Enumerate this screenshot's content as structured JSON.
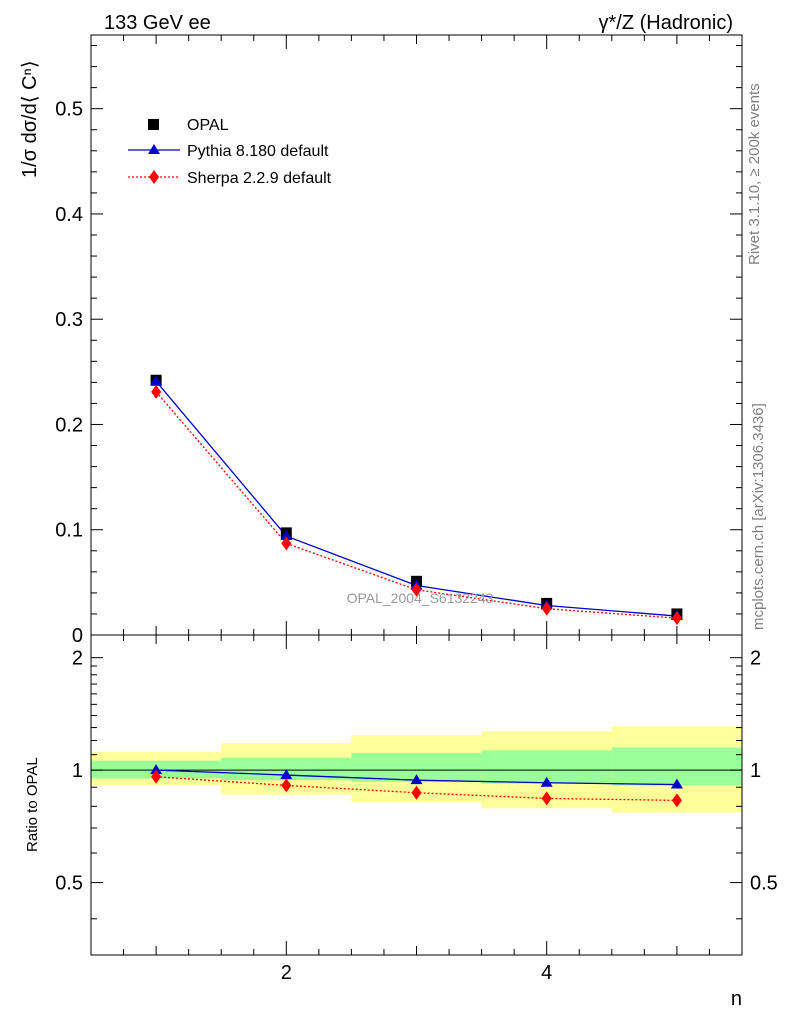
{
  "header": {
    "left": "133 GeV ee",
    "right": "γ*/Z (Hadronic)"
  },
  "side_labels": {
    "rivet": "Rivet 3.1.10, ≥ 200k events",
    "mcplots": "mcplots.cern.ch [arXiv:1306.3436]"
  },
  "watermark": "OPAL_2004_S6132243",
  "colors": {
    "data": "#000000",
    "pythia": "#0000cc",
    "sherpa": "#ff0000",
    "band_inner": "#99ff99",
    "band_outer": "#ffff99"
  },
  "chart_data": [
    {
      "type": "scatter",
      "panel": "main",
      "ylabel": "1/σ dσ/d⟨ Cⁿ⟩",
      "xlim": [
        0.5,
        5.5
      ],
      "ylim": [
        0,
        0.57
      ],
      "y_ticks": [
        "0",
        "0.1",
        "0.2",
        "0.3",
        "0.4",
        "0.5"
      ],
      "legend_position": "top-left",
      "x": [
        1,
        2,
        3,
        4,
        5
      ],
      "series": [
        {
          "name": "OPAL",
          "style": "square-markers",
          "values": [
            0.242,
            0.097,
            0.051,
            0.03,
            0.02
          ]
        },
        {
          "name": "Pythia 8.180 default",
          "style": "solid-line-triangles",
          "values": [
            0.241,
            0.094,
            0.047,
            0.028,
            0.018
          ]
        },
        {
          "name": "Sherpa 2.2.9 default",
          "style": "dotted-line-diamonds",
          "values": [
            0.231,
            0.087,
            0.043,
            0.025,
            0.016
          ]
        }
      ]
    },
    {
      "type": "line",
      "panel": "ratio",
      "ylabel": "Ratio to OPAL",
      "xlabel": "n",
      "xlim": [
        0.5,
        5.5
      ],
      "ylim": [
        0.32,
        2.3
      ],
      "y_ticks": [
        "0.5",
        "1",
        "2"
      ],
      "x_ticks": [
        "2",
        "4"
      ],
      "x": [
        1,
        2,
        3,
        4,
        5
      ],
      "bands": {
        "inner_lo": [
          0.95,
          0.94,
          0.93,
          0.92,
          0.91
        ],
        "inner_hi": [
          1.06,
          1.08,
          1.11,
          1.13,
          1.15
        ],
        "outer_lo": [
          0.91,
          0.86,
          0.82,
          0.79,
          0.77
        ],
        "outer_hi": [
          1.12,
          1.18,
          1.24,
          1.27,
          1.31
        ]
      },
      "series": [
        {
          "name": "Pythia 8.180 default",
          "values": [
            1.0,
            0.97,
            0.94,
            0.925,
            0.915
          ]
        },
        {
          "name": "Sherpa 2.2.9 default",
          "values": [
            0.96,
            0.91,
            0.87,
            0.84,
            0.83
          ]
        }
      ]
    }
  ]
}
